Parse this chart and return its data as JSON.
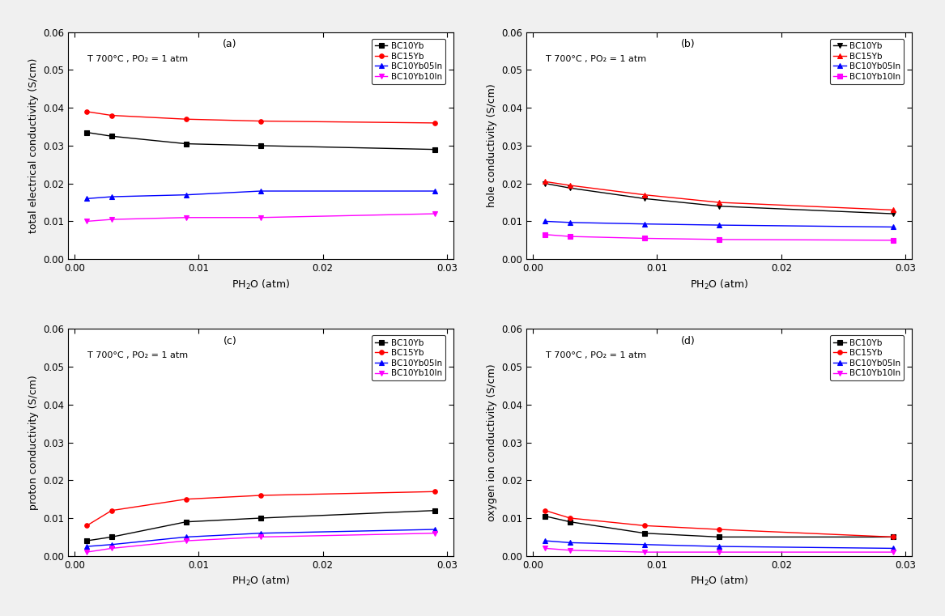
{
  "x_values": [
    0.001,
    0.003,
    0.009,
    0.015,
    0.029
  ],
  "panel_a": {
    "title": "(a)",
    "ylabel": "total electrical conductivity (S/cm)",
    "annotation": "T 700°C , PO₂ = 1 atm",
    "BC10Yb": [
      0.0335,
      0.0325,
      0.0305,
      0.03,
      0.029
    ],
    "BC15Yb": [
      0.039,
      0.038,
      0.037,
      0.0365,
      0.036
    ],
    "BC10Yb05In": [
      0.016,
      0.0165,
      0.017,
      0.018,
      0.018
    ],
    "BC10Yb10In": [
      0.01,
      0.0105,
      0.011,
      0.011,
      0.012
    ]
  },
  "panel_b": {
    "title": "(b)",
    "ylabel": "hole conductivity (S/cm)",
    "annotation": "T 700°C , PO₂ = 1 atm",
    "BC10Yb": [
      0.02,
      0.0188,
      0.016,
      0.014,
      0.012
    ],
    "BC15Yb": [
      0.0205,
      0.0195,
      0.017,
      0.015,
      0.013
    ],
    "BC10Yb05In": [
      0.01,
      0.0097,
      0.0093,
      0.009,
      0.0085
    ],
    "BC10Yb10In": [
      0.0065,
      0.006,
      0.0055,
      0.0052,
      0.005
    ]
  },
  "panel_c": {
    "title": "(c)",
    "ylabel": "proton conductivity (S/cm)",
    "annotation": "T 700°C , PO₂ = 1 atm",
    "BC10Yb": [
      0.004,
      0.005,
      0.009,
      0.01,
      0.012
    ],
    "BC15Yb": [
      0.008,
      0.012,
      0.015,
      0.016,
      0.017
    ],
    "BC10Yb05In": [
      0.0025,
      0.003,
      0.005,
      0.006,
      0.007
    ],
    "BC10Yb10In": [
      0.001,
      0.002,
      0.004,
      0.005,
      0.006
    ]
  },
  "panel_d": {
    "title": "(d)",
    "ylabel": "oxygen ion conductivity (S/cm)",
    "annotation": "T 700°C , PO₂ = 1 atm",
    "BC10Yb": [
      0.0105,
      0.009,
      0.006,
      0.005,
      0.005
    ],
    "BC15Yb": [
      0.012,
      0.01,
      0.008,
      0.007,
      0.005
    ],
    "BC10Yb05In": [
      0.004,
      0.0035,
      0.003,
      0.0025,
      0.002
    ],
    "BC10Yb10In": [
      0.002,
      0.0015,
      0.001,
      0.001,
      0.001
    ]
  },
  "series_colors": [
    "#000000",
    "#ff0000",
    "#0000ff",
    "#ff00ff"
  ],
  "series_labels": [
    "BC10Yb",
    "BC15Yb",
    "BC10Yb05In",
    "BC10Yb10In"
  ],
  "series_markers": [
    "s",
    "^",
    "^",
    "v"
  ],
  "series_markers_b": [
    "v",
    "^",
    "^",
    "s"
  ],
  "xlim": [
    -0.0005,
    0.0305
  ],
  "ylim": [
    0.0,
    0.06
  ],
  "xticks": [
    0.0,
    0.01,
    0.02,
    0.03
  ],
  "yticks": [
    0.0,
    0.01,
    0.02,
    0.03,
    0.04,
    0.05,
    0.06
  ],
  "xlabel": "PH₂O (atm)"
}
